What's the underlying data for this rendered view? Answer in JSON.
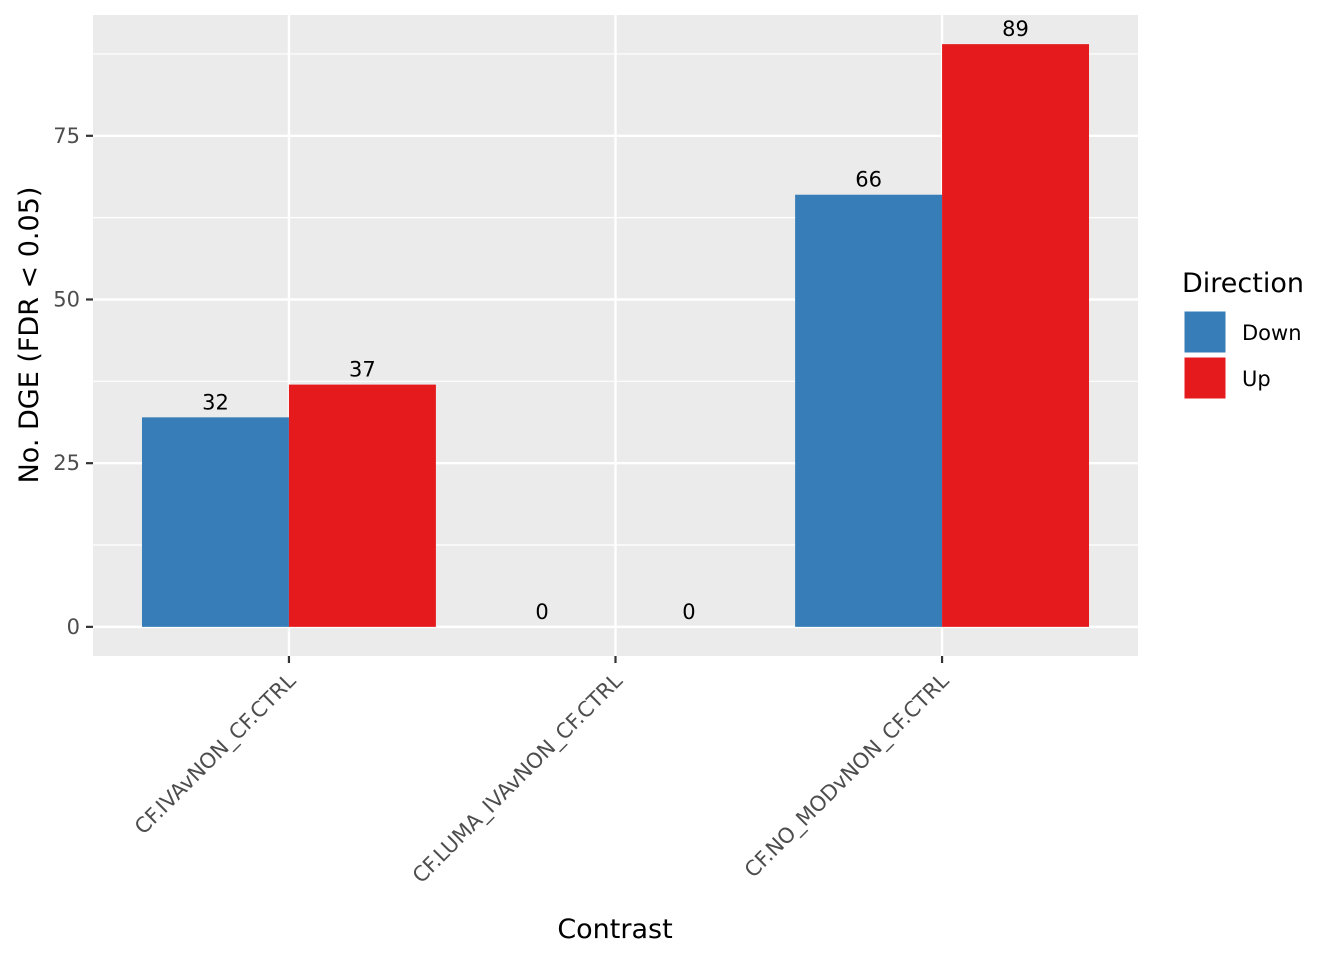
{
  "chart_data": {
    "type": "bar",
    "xlabel": "Contrast",
    "ylabel": "No. DGE (FDR < 0.05)",
    "categories": [
      "CF.IVAvNON_CF.CTRL",
      "CF.LUMA_IVAvNON_CF.CTRL",
      "CF.NO_MODvNON_CF.CTRL"
    ],
    "series": [
      {
        "name": "Down",
        "values": [
          32,
          0,
          66
        ],
        "color": "#377EB8"
      },
      {
        "name": "Up",
        "values": [
          37,
          0,
          89
        ],
        "color": "#E41A1C"
      }
    ],
    "ylim": [
      -4.45,
      93.45
    ],
    "yticks": [
      0,
      25,
      50,
      75
    ],
    "data_labels": true,
    "grid": true,
    "panel_background": "#EBEBEB",
    "grid_color": "#FFFFFF",
    "legend": {
      "title": "Direction",
      "position": "right"
    }
  }
}
